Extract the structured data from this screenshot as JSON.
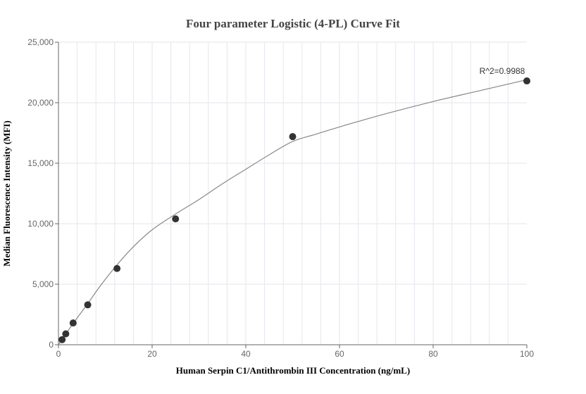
{
  "chart_data": {
    "type": "scatter",
    "title": "Four parameter Logistic (4-PL) Curve Fit",
    "xlabel": "Human Serpin C1/Antithrombin III Concentration (ng/mL)",
    "ylabel": "Median Fluorescence Intensity (MFI)",
    "xlim": [
      0,
      100
    ],
    "ylim": [
      0,
      25000
    ],
    "xticks": [
      0,
      20,
      40,
      60,
      80,
      100
    ],
    "xtick_labels": [
      "0",
      "20",
      "40",
      "60",
      "80",
      "100"
    ],
    "yticks": [
      0,
      5000,
      10000,
      15000,
      20000,
      25000
    ],
    "ytick_labels": [
      "0",
      "5,000",
      "10,000",
      "15,000",
      "20,000",
      "25,000"
    ],
    "grid": true,
    "series": [
      {
        "type": "scatter",
        "x": [
          0.78,
          1.56,
          3.13,
          6.25,
          12.5,
          25,
          50,
          100
        ],
        "y": [
          420,
          900,
          1800,
          3300,
          6300,
          10400,
          17200,
          21800
        ]
      },
      {
        "type": "line",
        "x": [
          0,
          0.78,
          1.56,
          3.13,
          6.25,
          9,
          12.5,
          16,
          20,
          25,
          30,
          35,
          40,
          45,
          50,
          55,
          60,
          70,
          80,
          90,
          100
        ],
        "y": [
          0,
          430,
          880,
          1760,
          3400,
          4900,
          6600,
          8100,
          9500,
          10800,
          12000,
          13300,
          14500,
          15700,
          16800,
          17400,
          18000,
          19100,
          20100,
          21000,
          21900
        ]
      }
    ],
    "annotations": [
      {
        "text": "R^2=0.9988",
        "x": 100,
        "y": 21800
      }
    ],
    "colors": {
      "point": "#333333",
      "curve": "#888888",
      "grid": "#e6e6ee",
      "axis": "#666666"
    }
  }
}
